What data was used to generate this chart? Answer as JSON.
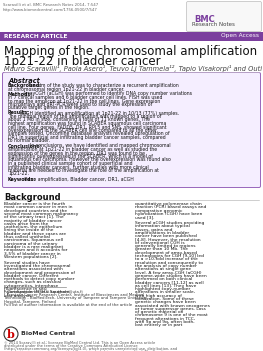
{
  "header_citation": "Scaravilli et al. BMC Research Notes 2014, 7:547",
  "header_url": "http://www.biomedcentral.com/1756-0500/7/547",
  "banner_text": "RESEARCH ARTICLE",
  "banner_right_text": "Open Access",
  "banner_color": "#7B3F9E",
  "title_line1": "Mapping of the chromosomal amplification",
  "title_line2": "1p21-22 in bladder cancer",
  "authors": "Mauro Scaravilli¹, Paola Asero¹, Teuvo LJ Tammela¹², Tapio Visakorpi¹ and Outi R Saramäki¹*",
  "abstract_title": "Abstract",
  "background_label": "Background:",
  "background_text": "The aim of the study was to characterize a recurrent amplification at chromosomal region 1p21-22 in bladder cancer.",
  "methods_label": "Methods:",
  "methods_text": "ArrayCGH (aCGH) was performed to identify DNA copy number variations in 7 clinical samples and 6 bladder cancer cell lines. FISH was used to map the amplicon at 1p21-22 in the cell lines. Gene expression microarrays and qRT-PCR were used to study the expression of putative target genes in the region.",
  "results_label": "Results:",
  "results_text": "aCGH identified an amplification at 1p21-22 in 10/13 (77%) samples. The minimal region of the amplification was mapped to a region of about 1 Mb in size, containing a total of 11 known genes. The highest amplification was found in SCABER squamous cell carcinoma cell line. Four genes, FADD5, DR1, RPL5 and SNS, showed significant overexpression in the SCABER cell line compared to all the other samples tested. Oncomine database analysis revealed upregulation of DR1 in superficial and infiltrating bladder cancer samples, compared to normal bladder.",
  "conclusions_label": "Conclusions:",
  "conclusions_text": "In conclusions, we have identified and mapped chromosomal amplification at 1p21-22 in bladder cancer as well as studied the expression of the genes in the region. DR1 was found to be significantly overexpressed in the SCABER, which is a model of squamous cell carcinoma. However the overexpression was found also in a published clinical sample cohort of superficial and infiltrating bladder cancers. Further studies with more clinical material are needed to investigate the role of the amplification at 1p21-22.",
  "keywords_label": "Keywords:",
  "keywords_text": "Gene amplification, Bladder cancer, DR1, aCGH",
  "bg_section_title": "Background",
  "bg_para1": "Bladder cancer is the fourth most common cancer in men in developed countries and the second most common malignancy of the urinary tract [1]. The majority of bladder cancer cases arise from the urothelium, the epithelium lining the inside of the bladder and these cases are thus called urothelial carcinomas. Squamous cell carcinoma of the urinary bladder is a rare malignant neoplasm and it accounts for 3-5% of bladder cancer in Western populations [2].",
  "bg_para2": "Several studies have investigated the chromosomal alterations associated with development and progression of bladder cancer. Different methods to detect copy number changes, such as classical cytogenetics, interphase fluorescence in situ hybridization (FISH), Southern blot analysis,",
  "bg_para3": "quantitative polymerase chain reaction (PCR) based assays and comparative genomic hybridization (CGH) have been used [3].",
  "bg_para4": "Several aCGH studies providing information about typical losses, gains and amplifications in bladder cancer have been published [4-8]. However, the resolution of conventional CGH is generally limited to regions greater than 10 Mb. The development of array-based technologies for CGH [9,10] led to a >10-fold increase of the resolution and consequently to the analysis of copy number alterations at single gene level. A few array-CGH (aCGH) genome-wide studies have been performed on both clinical bladder cancers [11,12] as well as cell lines [13]. They have highlighted copy-number alterations in smaller scale, with high accuracy of localization. Some of these genetic changes have been associated with known oncogenes or tumor suppressor genes. Loss of genetic material on chromosome 9 is one of the most frequent alterations in TCC, with 9p and 9q, often both, lost entirely or in part",
  "footnote_star": "* Correspondence: outi.saramaki@uta.fi",
  "footnote_1": "¹ Prostate Cancer Research Center, Institute of Biosciences and Medical",
  "footnote_2": "Technology - BioMediTech, University of Tampere and Tampere University",
  "footnote_3": "Hospital, Tampere, Finland",
  "footnote_4": "Full list of author information is available at the end of the article",
  "biomed_central_text": "BioMed Central",
  "copyright_text": "© 2014 Scaravilli et al.; licensee BioMed Central Ltd. This is an Open Access article distributed under the terms of the Creative Commons Attribution License (http://creativecommons.org/licenses/by/4.0), which permits unrestricted use, distribution, and reproduction in any medium, provided the original work is properly credited. The Creative Commons Public Domain Dedication waiver (http://creativecommons.org/publicdomain/zero/1.0/) applies to the data made available in this article, unless otherwise stated.",
  "bg_color": "#ffffff"
}
